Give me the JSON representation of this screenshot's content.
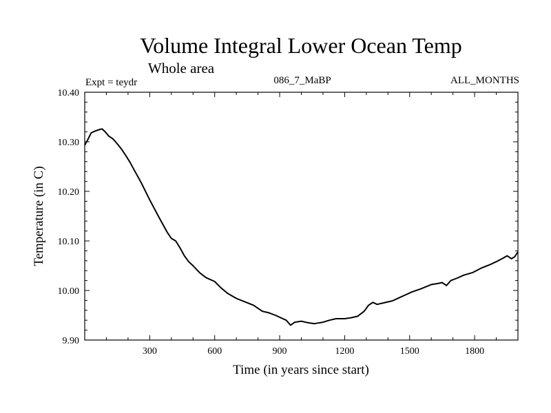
{
  "chart_data": {
    "type": "line",
    "title": "Volume Integral Lower Ocean Temp",
    "subtitle": "Whole area",
    "header_left": "Expt = teydr",
    "header_center": "086_7_MaBP",
    "header_right": "ALL_MONTHS",
    "xlabel": "Time (in years since start)",
    "ylabel": "Temperature (in C)",
    "xlim": [
      0,
      2000
    ],
    "ylim": [
      9.9,
      10.4
    ],
    "x_ticks": [
      300,
      600,
      900,
      1200,
      1500,
      1800
    ],
    "x_tick_labels": [
      "300",
      "600",
      "900",
      "1200",
      "1500",
      "1800"
    ],
    "y_ticks": [
      9.9,
      10.0,
      10.1,
      10.2,
      10.3,
      10.4
    ],
    "y_tick_labels": [
      "9.90",
      "10.00",
      "10.10",
      "10.20",
      "10.30",
      "10.40"
    ],
    "grid": false,
    "series": [
      {
        "name": "teydr",
        "color": "#000000",
        "x": [
          0,
          15,
          30,
          50,
          70,
          80,
          95,
          110,
          130,
          150,
          170,
          190,
          210,
          230,
          260,
          300,
          340,
          380,
          400,
          420,
          440,
          460,
          480,
          500,
          530,
          560,
          600,
          630,
          660,
          700,
          740,
          780,
          800,
          820,
          850,
          880,
          900,
          930,
          950,
          970,
          1000,
          1030,
          1060,
          1100,
          1130,
          1160,
          1200,
          1230,
          1260,
          1290,
          1310,
          1330,
          1350,
          1380,
          1420,
          1450,
          1480,
          1510,
          1550,
          1600,
          1630,
          1650,
          1670,
          1690,
          1720,
          1750,
          1790,
          1830,
          1870,
          1900,
          1930,
          1950,
          1970,
          1985,
          2000
        ],
        "values": [
          10.293,
          10.305,
          10.318,
          10.322,
          10.325,
          10.326,
          10.32,
          10.312,
          10.306,
          10.296,
          10.285,
          10.272,
          10.258,
          10.242,
          10.218,
          10.183,
          10.15,
          10.118,
          10.105,
          10.1,
          10.086,
          10.07,
          10.058,
          10.05,
          10.036,
          10.026,
          10.018,
          10.005,
          9.994,
          9.984,
          9.977,
          9.97,
          9.964,
          9.958,
          9.955,
          9.95,
          9.946,
          9.94,
          9.93,
          9.936,
          9.938,
          9.935,
          9.933,
          9.936,
          9.94,
          9.943,
          9.943,
          9.945,
          9.948,
          9.958,
          9.97,
          9.976,
          9.972,
          9.975,
          9.979,
          9.985,
          9.991,
          9.997,
          10.003,
          10.012,
          10.014,
          10.016,
          10.01,
          10.02,
          10.025,
          10.031,
          10.036,
          10.045,
          10.052,
          10.058,
          10.065,
          10.07,
          10.064,
          10.068,
          10.078
        ]
      }
    ]
  }
}
